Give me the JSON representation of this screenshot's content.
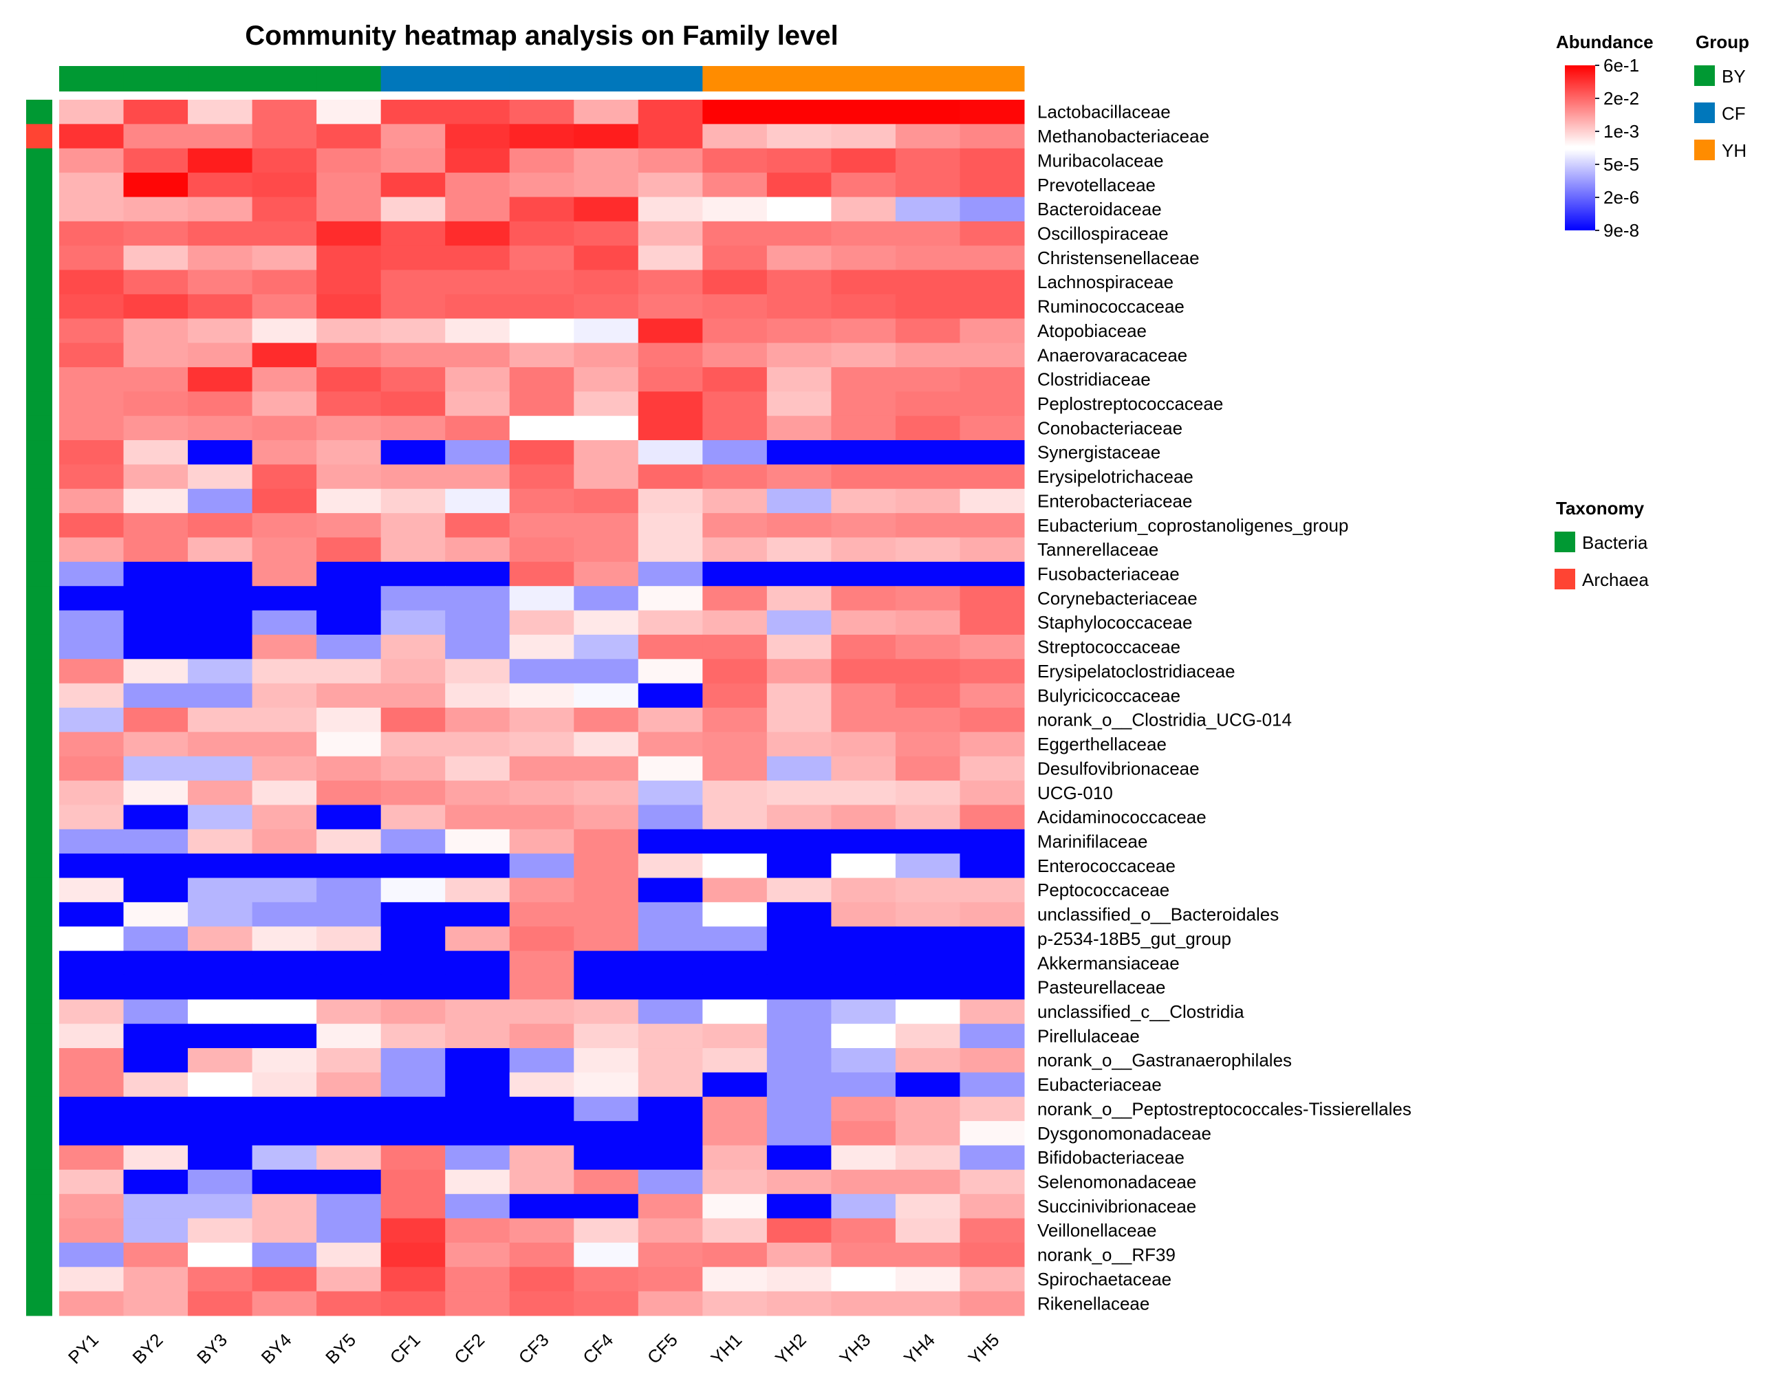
{
  "chart_data": {
    "type": "heatmap",
    "title": "Community heatmap analysis on Family level",
    "value_scale": "log10 relative abundance",
    "columns": [
      "BY1",
      "BY2",
      "BY3",
      "BY4",
      "BY5",
      "CF1",
      "CF2",
      "CF3",
      "CF4",
      "CF5",
      "YH1",
      "YH2",
      "YH3",
      "YH4",
      "YH5"
    ],
    "column_labels": [
      "PY1",
      "BY2",
      "BY3",
      "BY4",
      "BY5",
      "CF1",
      "CF2",
      "CF3",
      "CF4",
      "CF5",
      "YH1",
      "YH2",
      "YH3",
      "YH4",
      "YH5"
    ],
    "column_groups": [
      "BY",
      "BY",
      "BY",
      "BY",
      "BY",
      "CF",
      "CF",
      "CF",
      "CF",
      "CF",
      "YH",
      "YH",
      "YH",
      "YH",
      "YH"
    ],
    "rows": [
      "Lactobacillaceae",
      "Methanobacteriaceae",
      "Muribacolaceae",
      "Prevotellaceae",
      "Bacteroidaceae",
      "Oscillospiraceae",
      "Christensenellaceae",
      "Lachnospiraceae",
      "Ruminococcaceae",
      "Atopobiaceae",
      "Anaerovaracaceae",
      "Clostridiaceae",
      "Peplostreptococcaceae",
      "Conobacteriaceae",
      "Synergistaceae",
      "Erysipelotrichaceae",
      "Enterobacteriaceae",
      "Eubacterium_coprostanoligenes_group",
      "Tannerellaceae",
      "Fusobacteriaceae",
      "Corynebacteriaceae",
      "Staphylococcaceae",
      "Streptococcaceae",
      "Erysipelatoclostridiaceae",
      "Bulyricicoccaceae",
      "norank_o__Clostridia_UCG-014",
      "Eggerthellaceae",
      "Desulfovibrionaceae",
      "UCG-010",
      "Acidaminococcaceae",
      "Marinifilaceae",
      "Enterococcaceae",
      "Peptococcaceae",
      "unclassified_o__Bacteroidales",
      "p-2534-18B5_gut_group",
      "Akkermansiaceae",
      "Pasteurellaceae",
      "unclassified_c__Clostridia",
      "Pirellulaceae",
      "norank_o__Gastranaerophilales",
      "Eubacteriaceae",
      "norank_o__Peptostreptococcales-Tissierellales",
      "Dysgonomonadaceae",
      "Bifidobacteriaceae",
      "Selenomonadaceae",
      "Succinivibrionaceae",
      "Veillonellaceae",
      "norank_o__RF39",
      "Spirochaetaceae",
      "Rikenellaceae"
    ],
    "row_taxonomy": [
      "Bacteria",
      "Archaea",
      "Bacteria",
      "Bacteria",
      "Bacteria",
      "Bacteria",
      "Bacteria",
      "Bacteria",
      "Bacteria",
      "Bacteria",
      "Bacteria",
      "Bacteria",
      "Bacteria",
      "Bacteria",
      "Bacteria",
      "Bacteria",
      "Bacteria",
      "Bacteria",
      "Bacteria",
      "Bacteria",
      "Bacteria",
      "Bacteria",
      "Bacteria",
      "Bacteria",
      "Bacteria",
      "Bacteria",
      "Bacteria",
      "Bacteria",
      "Bacteria",
      "Bacteria",
      "Bacteria",
      "Bacteria",
      "Bacteria",
      "Bacteria",
      "Bacteria",
      "Bacteria",
      "Bacteria",
      "Bacteria",
      "Bacteria",
      "Bacteria",
      "Bacteria",
      "Bacteria",
      "Bacteria",
      "Bacteria",
      "Bacteria",
      "Bacteria",
      "Bacteria",
      "Bacteria",
      "Bacteria",
      "Bacteria"
    ],
    "values_log10": [
      [
        -2.7,
        -1.2,
        -3.0,
        -1.6,
        -3.4,
        -1.2,
        -1.2,
        -1.5,
        -2.5,
        -1.1,
        -0.25,
        -0.25,
        -0.25,
        -0.25,
        -0.3
      ],
      [
        -0.9,
        -2.0,
        -2.0,
        -1.6,
        -1.3,
        -2.2,
        -0.9,
        -0.7,
        -0.6,
        -1.1,
        -2.6,
        -2.9,
        -2.8,
        -2.2,
        -2.0
      ],
      [
        -2.2,
        -1.4,
        -0.6,
        -1.3,
        -1.9,
        -2.1,
        -1.0,
        -2.0,
        -2.3,
        -2.1,
        -1.6,
        -1.5,
        -1.2,
        -1.6,
        -1.4
      ],
      [
        -2.6,
        -0.3,
        -1.3,
        -1.2,
        -2.0,
        -1.1,
        -2.0,
        -2.2,
        -2.3,
        -2.6,
        -2.0,
        -1.2,
        -1.8,
        -1.6,
        -1.4
      ],
      [
        -2.6,
        -2.5,
        -2.4,
        -1.4,
        -2.0,
        -3.0,
        -2.0,
        -1.2,
        -0.8,
        -3.2,
        -3.4,
        -3.6,
        -2.7,
        -4.6,
        -5.0
      ],
      [
        -1.6,
        -1.7,
        -1.5,
        -1.5,
        -0.8,
        -1.3,
        -0.8,
        -1.4,
        -1.5,
        -2.6,
        -1.8,
        -1.8,
        -1.9,
        -1.9,
        -1.6
      ],
      [
        -1.7,
        -2.8,
        -2.3,
        -2.5,
        -1.2,
        -1.3,
        -1.3,
        -1.7,
        -1.2,
        -3.0,
        -1.7,
        -2.3,
        -2.1,
        -2.0,
        -2.0
      ],
      [
        -1.2,
        -1.6,
        -1.9,
        -1.7,
        -1.2,
        -1.6,
        -1.6,
        -1.6,
        -1.5,
        -1.7,
        -1.3,
        -1.6,
        -1.4,
        -1.4,
        -1.4
      ],
      [
        -1.3,
        -1.1,
        -1.4,
        -1.9,
        -1.1,
        -1.6,
        -1.5,
        -1.5,
        -1.6,
        -1.8,
        -1.7,
        -1.6,
        -1.5,
        -1.4,
        -1.4
      ],
      [
        -1.7,
        -2.4,
        -2.6,
        -3.3,
        -2.7,
        -2.8,
        -3.3,
        -3.6,
        -3.8,
        -0.8,
        -1.8,
        -1.9,
        -2.0,
        -1.7,
        -2.2
      ],
      [
        -1.5,
        -2.4,
        -2.3,
        -0.8,
        -1.9,
        -2.1,
        -2.1,
        -2.5,
        -2.3,
        -1.8,
        -2.1,
        -2.4,
        -2.5,
        -2.3,
        -2.3
      ],
      [
        -2.0,
        -2.0,
        -0.9,
        -2.2,
        -1.3,
        -1.6,
        -2.5,
        -1.8,
        -2.5,
        -1.7,
        -1.4,
        -2.7,
        -1.9,
        -1.9,
        -1.8
      ],
      [
        -2.0,
        -1.9,
        -1.8,
        -2.5,
        -1.5,
        -1.4,
        -2.6,
        -1.8,
        -2.8,
        -1.0,
        -1.6,
        -2.8,
        -1.9,
        -1.8,
        -1.8
      ],
      [
        -2.0,
        -2.2,
        -2.1,
        -2.0,
        -2.2,
        -2.1,
        -1.8,
        -3.6,
        -3.6,
        -1.0,
        -1.6,
        -2.3,
        -1.9,
        -1.6,
        -1.9
      ],
      [
        -1.5,
        -3.0,
        -7.0,
        -2.2,
        -2.5,
        -7.0,
        -5.0,
        -1.4,
        -2.5,
        -3.9,
        -5.0,
        -7.0,
        -7.0,
        -7.0,
        -7.0
      ],
      [
        -1.6,
        -2.5,
        -3.0,
        -1.5,
        -2.4,
        -2.3,
        -2.3,
        -1.6,
        -2.5,
        -1.6,
        -1.8,
        -2.0,
        -1.8,
        -1.8,
        -1.8
      ],
      [
        -2.3,
        -3.3,
        -5.0,
        -1.4,
        -3.3,
        -3.0,
        -3.8,
        -1.8,
        -1.7,
        -3.0,
        -2.6,
        -4.6,
        -2.7,
        -2.6,
        -3.2
      ],
      [
        -1.5,
        -1.9,
        -1.7,
        -2.0,
        -2.1,
        -2.6,
        -1.6,
        -2.0,
        -2.0,
        -3.1,
        -2.1,
        -2.0,
        -2.1,
        -2.0,
        -2.0
      ],
      [
        -2.4,
        -1.9,
        -2.6,
        -2.1,
        -1.6,
        -2.6,
        -2.4,
        -1.9,
        -2.0,
        -3.1,
        -2.6,
        -2.9,
        -2.6,
        -2.7,
        -2.5
      ],
      [
        -5.0,
        -7.0,
        -7.0,
        -2.1,
        -7.0,
        -7.0,
        -7.0,
        -1.6,
        -2.2,
        -5.0,
        -7.0,
        -7.0,
        -7.0,
        -7.0,
        -7.0
      ],
      [
        -7.0,
        -7.0,
        -7.0,
        -7.0,
        -7.0,
        -5.0,
        -5.0,
        -3.8,
        -5.0,
        -3.5,
        -1.9,
        -2.8,
        -1.9,
        -2.0,
        -1.6
      ],
      [
        -5.0,
        -7.0,
        -7.0,
        -5.0,
        -7.0,
        -4.6,
        -5.0,
        -2.8,
        -3.3,
        -2.8,
        -2.6,
        -4.6,
        -2.5,
        -2.4,
        -1.6
      ],
      [
        -5.0,
        -7.0,
        -7.0,
        -2.2,
        -5.0,
        -2.7,
        -5.0,
        -3.3,
        -4.5,
        -1.8,
        -1.8,
        -2.9,
        -1.8,
        -2.0,
        -2.2
      ],
      [
        -2.0,
        -3.3,
        -4.5,
        -3.0,
        -3.0,
        -2.6,
        -3.0,
        -5.0,
        -5.0,
        -3.5,
        -1.6,
        -2.3,
        -1.6,
        -1.6,
        -1.7
      ],
      [
        -3.0,
        -5.0,
        -5.0,
        -2.7,
        -2.4,
        -2.4,
        -3.2,
        -3.4,
        -3.7,
        -7.0,
        -1.7,
        -2.8,
        -2.0,
        -1.7,
        -2.1
      ],
      [
        -4.5,
        -1.8,
        -2.8,
        -2.8,
        -3.3,
        -1.7,
        -2.3,
        -2.6,
        -2.0,
        -2.6,
        -2.0,
        -2.8,
        -2.0,
        -2.0,
        -1.8
      ],
      [
        -2.1,
        -2.5,
        -2.3,
        -2.3,
        -3.5,
        -2.7,
        -2.7,
        -2.8,
        -3.2,
        -2.2,
        -2.1,
        -2.6,
        -2.5,
        -2.1,
        -2.4
      ],
      [
        -2.0,
        -4.5,
        -4.5,
        -2.5,
        -2.3,
        -2.5,
        -3.0,
        -2.2,
        -2.2,
        -3.5,
        -2.1,
        -4.6,
        -2.6,
        -2.0,
        -2.7
      ],
      [
        -2.7,
        -3.4,
        -2.4,
        -3.2,
        -2.0,
        -2.1,
        -2.4,
        -2.5,
        -2.6,
        -4.5,
        -2.9,
        -3.0,
        -3.0,
        -2.9,
        -2.5
      ],
      [
        -2.8,
        -7.0,
        -4.5,
        -2.5,
        -7.0,
        -2.7,
        -2.2,
        -2.2,
        -2.4,
        -5.0,
        -2.9,
        -2.6,
        -2.4,
        -2.7,
        -1.9
      ],
      [
        -5.0,
        -5.0,
        -2.9,
        -2.4,
        -3.1,
        -5.0,
        -3.5,
        -2.5,
        -2.0,
        -7.0,
        -7.0,
        -7.0,
        -7.0,
        -7.0,
        -7.0
      ],
      [
        -7.0,
        -7.0,
        -7.0,
        -7.0,
        -7.0,
        -7.0,
        -7.0,
        -5.0,
        -2.0,
        -3.1,
        -3.6,
        -7.0,
        -3.6,
        -4.6,
        -7.0
      ],
      [
        -3.3,
        -7.0,
        -4.6,
        -4.6,
        -5.0,
        -3.7,
        -3.0,
        -2.2,
        -2.0,
        -7.0,
        -2.4,
        -3.0,
        -2.6,
        -2.7,
        -2.7
      ],
      [
        -7.0,
        -3.5,
        -4.6,
        -5.0,
        -5.0,
        -7.0,
        -7.0,
        -2.0,
        -2.0,
        -5.0,
        -3.6,
        -7.0,
        -2.5,
        -2.6,
        -2.5
      ],
      [
        -3.6,
        -5.0,
        -2.6,
        -3.3,
        -3.1,
        -7.0,
        -2.5,
        -1.8,
        -2.0,
        -5.0,
        -5.0,
        -7.0,
        -7.0,
        -7.0,
        -7.0
      ],
      [
        -7.0,
        -7.0,
        -7.0,
        -7.0,
        -7.0,
        -7.0,
        -7.0,
        -2.0,
        -7.0,
        -7.0,
        -7.0,
        -7.0,
        -7.0,
        -7.0,
        -7.0
      ],
      [
        -7.0,
        -7.0,
        -7.0,
        -7.0,
        -7.0,
        -7.0,
        -7.0,
        -2.0,
        -7.0,
        -7.0,
        -7.0,
        -7.0,
        -7.0,
        -7.0,
        -7.0
      ],
      [
        -2.8,
        -5.0,
        -3.6,
        -3.6,
        -2.6,
        -2.4,
        -2.6,
        -2.6,
        -2.7,
        -5.0,
        -3.6,
        -5.0,
        -4.5,
        -3.6,
        -2.6
      ],
      [
        -3.2,
        -7.0,
        -7.0,
        -7.0,
        -3.4,
        -2.8,
        -2.6,
        -2.3,
        -3.0,
        -2.8,
        -2.7,
        -5.0,
        -3.6,
        -3.0,
        -5.0
      ],
      [
        -2.0,
        -7.0,
        -2.6,
        -3.3,
        -2.8,
        -5.0,
        -7.0,
        -5.0,
        -3.3,
        -2.8,
        -3.0,
        -5.0,
        -4.6,
        -2.6,
        -2.4
      ],
      [
        -2.0,
        -3.0,
        -3.6,
        -3.2,
        -2.5,
        -5.0,
        -7.0,
        -3.2,
        -3.4,
        -2.8,
        -7.0,
        -5.0,
        -5.0,
        -7.0,
        -5.0
      ],
      [
        -7.0,
        -7.0,
        -7.0,
        -7.0,
        -7.0,
        -7.0,
        -7.0,
        -7.0,
        -5.0,
        -7.0,
        -2.2,
        -5.0,
        -2.2,
        -2.5,
        -2.8
      ],
      [
        -7.0,
        -7.0,
        -7.0,
        -7.0,
        -7.0,
        -7.0,
        -7.0,
        -7.0,
        -7.0,
        -7.0,
        -2.2,
        -5.0,
        -2.0,
        -2.5,
        -3.5
      ],
      [
        -2.0,
        -3.2,
        -7.0,
        -4.5,
        -2.8,
        -1.8,
        -5.0,
        -2.6,
        -7.0,
        -7.0,
        -2.6,
        -7.0,
        -3.3,
        -3.0,
        -5.0
      ],
      [
        -2.8,
        -7.0,
        -5.0,
        -7.0,
        -7.0,
        -1.7,
        -3.3,
        -2.6,
        -2.0,
        -5.0,
        -2.7,
        -2.5,
        -2.3,
        -2.3,
        -2.8
      ],
      [
        -2.3,
        -4.6,
        -4.6,
        -2.7,
        -5.0,
        -1.7,
        -5.0,
        -7.0,
        -7.0,
        -2.1,
        -3.5,
        -7.0,
        -4.6,
        -3.1,
        -2.5
      ],
      [
        -2.2,
        -4.6,
        -3.0,
        -2.7,
        -5.0,
        -1.0,
        -2.0,
        -2.2,
        -3.0,
        -2.4,
        -2.9,
        -1.5,
        -1.9,
        -3.0,
        -1.8
      ],
      [
        -5.0,
        -2.0,
        -3.6,
        -5.0,
        -3.2,
        -0.9,
        -2.2,
        -1.9,
        -3.7,
        -2.0,
        -1.9,
        -2.5,
        -2.0,
        -2.0,
        -1.7
      ],
      [
        -3.2,
        -2.5,
        -1.8,
        -1.5,
        -2.6,
        -1.2,
        -1.9,
        -1.5,
        -1.8,
        -1.9,
        -3.4,
        -3.3,
        -3.6,
        -3.4,
        -2.6
      ],
      [
        -2.3,
        -2.5,
        -1.6,
        -2.1,
        -1.6,
        -1.5,
        -1.9,
        -1.6,
        -1.7,
        -2.4,
        -2.7,
        -2.6,
        -2.5,
        -2.5,
        -2.2
      ]
    ],
    "colorbar": {
      "title": "Abundance",
      "ticks": [
        "6e-1",
        "2e-2",
        "1e-3",
        "5e-5",
        "2e-6",
        "9e-8"
      ],
      "range_log10": [
        -7.05,
        -0.22
      ],
      "colors": {
        "low": "#0000ff",
        "mid": "#ffffff",
        "high": "#ff0000"
      }
    },
    "group_legend": {
      "title": "Group",
      "items": [
        {
          "label": "BY",
          "color": "#009933"
        },
        {
          "label": "CF",
          "color": "#0077bb"
        },
        {
          "label": "YH",
          "color": "#ff8c00"
        }
      ]
    },
    "taxonomy_legend": {
      "title": "Taxonomy",
      "items": [
        {
          "label": "Bacteria",
          "color": "#009933"
        },
        {
          "label": "Archaea",
          "color": "#ff4433"
        }
      ]
    }
  }
}
